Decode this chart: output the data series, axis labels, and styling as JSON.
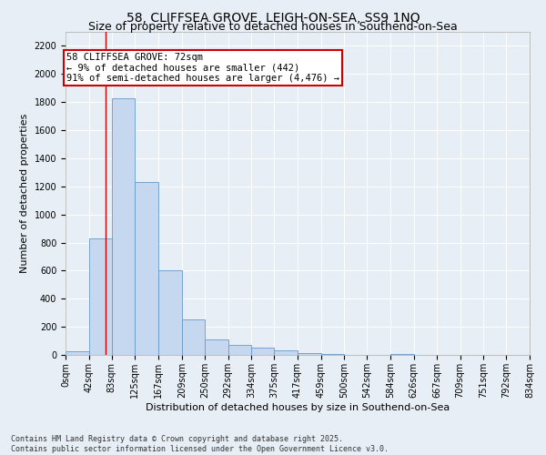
{
  "title_line1": "58, CLIFFSEA GROVE, LEIGH-ON-SEA, SS9 1NQ",
  "title_line2": "Size of property relative to detached houses in Southend-on-Sea",
  "xlabel": "Distribution of detached houses by size in Southend-on-Sea",
  "ylabel": "Number of detached properties",
  "bin_edges": [
    0,
    42,
    83,
    125,
    167,
    209,
    250,
    292,
    334,
    375,
    417,
    459,
    500,
    542,
    584,
    626,
    667,
    709,
    751,
    792,
    834
  ],
  "bin_labels": [
    "0sqm",
    "42sqm",
    "83sqm",
    "125sqm",
    "167sqm",
    "209sqm",
    "250sqm",
    "292sqm",
    "334sqm",
    "375sqm",
    "417sqm",
    "459sqm",
    "500sqm",
    "542sqm",
    "584sqm",
    "626sqm",
    "667sqm",
    "709sqm",
    "751sqm",
    "792sqm",
    "834sqm"
  ],
  "bar_heights": [
    25,
    830,
    1830,
    1230,
    600,
    255,
    110,
    70,
    50,
    30,
    12,
    5,
    0,
    0,
    8,
    0,
    0,
    0,
    0,
    0
  ],
  "bar_color": "#c5d8f0",
  "bar_edge_color": "#6699cc",
  "property_size": 72,
  "vline_color": "#cc0000",
  "annotation_text": "58 CLIFFSEA GROVE: 72sqm\n← 9% of detached houses are smaller (442)\n91% of semi-detached houses are larger (4,476) →",
  "annotation_box_color": "#ffffff",
  "annotation_box_edge": "#cc0000",
  "ylim": [
    0,
    2300
  ],
  "yticks": [
    0,
    200,
    400,
    600,
    800,
    1000,
    1200,
    1400,
    1600,
    1800,
    2000,
    2200
  ],
  "background_color": "#e8eef5",
  "grid_color": "#ffffff",
  "footnote": "Contains HM Land Registry data © Crown copyright and database right 2025.\nContains public sector information licensed under the Open Government Licence v3.0.",
  "title_fontsize": 10,
  "subtitle_fontsize": 9,
  "label_fontsize": 8,
  "tick_fontsize": 7,
  "annotation_fontsize": 7.5,
  "footnote_fontsize": 6
}
